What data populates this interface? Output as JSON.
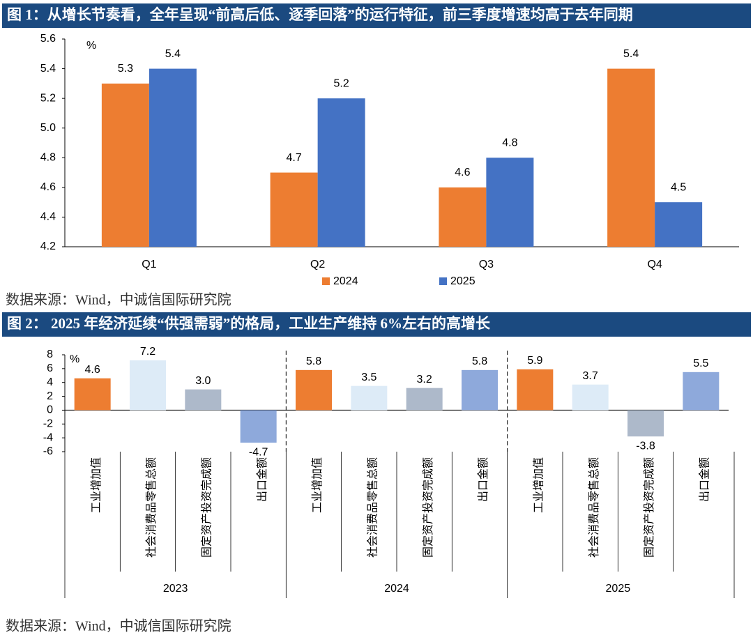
{
  "chart_data": [
    {
      "type": "bar",
      "title": "图 1：从增长节奏看，全年呈现“前高后低、逐季回落”的运行特征，前三季度增速均高于去年同期",
      "source": "数据来源：Wind，中诚信国际研究院",
      "y_unit": "%",
      "categories": [
        "Q1",
        "Q2",
        "Q3",
        "Q4"
      ],
      "series": [
        {
          "name": "2024",
          "color": "#ED7D31",
          "values": [
            5.3,
            4.7,
            4.6,
            5.4
          ]
        },
        {
          "name": "2025",
          "color": "#4472C4",
          "values": [
            5.4,
            5.2,
            4.8,
            4.5
          ]
        }
      ],
      "ylim": [
        4.2,
        5.6
      ],
      "yticks": [
        4.2,
        4.4,
        4.6,
        4.8,
        {
          "value": 5,
          "label": "5.0"
        },
        5.2,
        5.4,
        5.6
      ]
    },
    {
      "type": "grouped-category-bar",
      "title": "图 2：  2025 年经济延续“供强需弱”的格局，工业生产维持 6%左右的高增长",
      "source": "数据来源：Wind，中诚信国际研究院",
      "y_unit": "%",
      "categories": [
        "工业增加值",
        "社会消费品零售总额",
        "固定资产投资完成额",
        "出口金额",
        "工业增加值",
        "社会消费品零售总额",
        "固定资产投资完成额",
        "出口金额",
        "工业增加值",
        "社会消费品零售总额",
        "固定资产投资完成额",
        "出口金额"
      ],
      "groups": [
        "2023",
        "2024",
        "2025"
      ],
      "values": [
        4.6,
        7.2,
        3.0,
        -4.7,
        5.8,
        3.5,
        3.2,
        5.8,
        5.9,
        3.7,
        -3.8,
        5.5
      ],
      "value_labels": [
        "4.6",
        "7.2",
        "3.0",
        "-4.7",
        "5.8",
        "3.5",
        "3.2",
        "5.8",
        "5.9",
        "3.7",
        "-3.8",
        "5.5"
      ],
      "colors": [
        "#ED7D31",
        "#DDEBF7",
        "#ADB9CA",
        "#8EA9DB",
        "#ED7D31",
        "#DDEBF7",
        "#ADB9CA",
        "#8EA9DB",
        "#ED7D31",
        "#DDEBF7",
        "#ADB9CA",
        "#8EA9DB"
      ],
      "ylim": [
        -6,
        8
      ],
      "yticks": [
        -6,
        -4,
        -2,
        0,
        2,
        4,
        6,
        8
      ]
    }
  ]
}
